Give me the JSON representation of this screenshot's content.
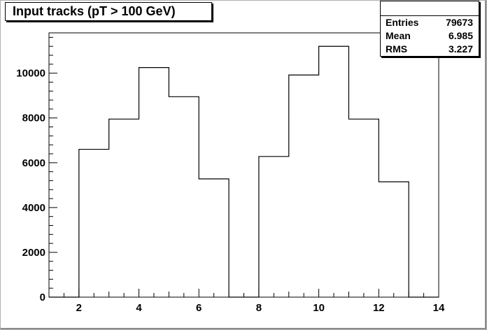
{
  "chart_data": {
    "type": "bar",
    "histogram": true,
    "title": "Input tracks (pT > 100 GeV)",
    "xlabel": "",
    "ylabel": "",
    "xlim": [
      1,
      14
    ],
    "ylim": [
      0,
      11800
    ],
    "x_ticks": [
      2,
      4,
      6,
      8,
      10,
      12,
      14
    ],
    "y_ticks": [
      0,
      2000,
      4000,
      6000,
      8000,
      10000
    ],
    "bin_edges": [
      1,
      2,
      3,
      4,
      5,
      6,
      7,
      8,
      9,
      10,
      11,
      12,
      13,
      14
    ],
    "values": [
      0,
      6600,
      7950,
      10250,
      8950,
      5280,
      0,
      6280,
      9920,
      11200,
      7950,
      5150,
      0
    ],
    "line_color": "#000000",
    "grid": false
  },
  "stats": {
    "rows": [
      {
        "label": "Entries",
        "value": "79673"
      },
      {
        "label": "Mean",
        "value": "6.985"
      },
      {
        "label": "RMS",
        "value": "3.227"
      }
    ]
  }
}
